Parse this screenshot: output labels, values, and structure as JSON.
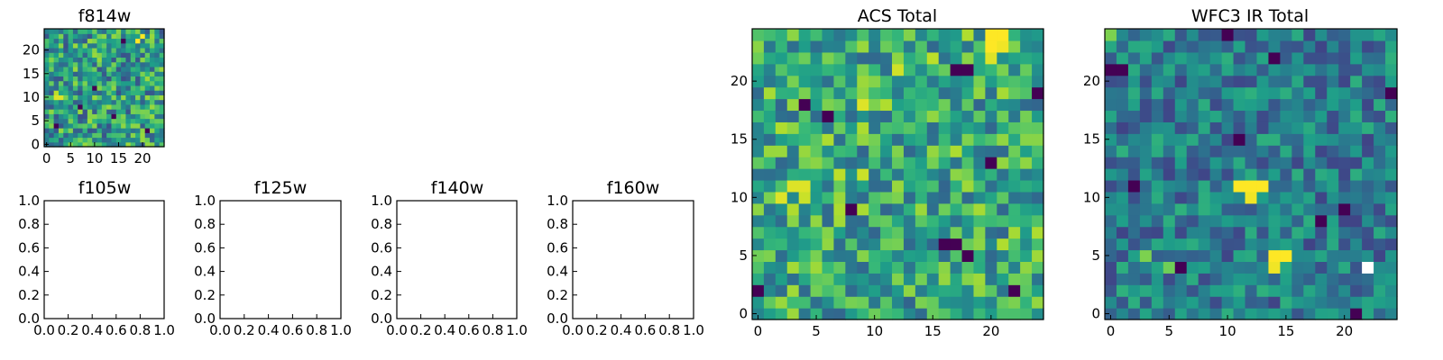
{
  "chart_data": [
    {
      "type": "heatmap",
      "title": "f814w",
      "colormap": "viridis",
      "grid_size": 25,
      "xticks": [
        "0",
        "5",
        "10",
        "15",
        "20"
      ],
      "yticks": [
        "0",
        "5",
        "10",
        "15",
        "20"
      ],
      "seed": 11,
      "base_level": 0.55,
      "noise": 0.3,
      "hotspots": [
        [
          19,
          22,
          1.0
        ],
        [
          20,
          23,
          1.0
        ],
        [
          2,
          10,
          0.95
        ],
        [
          3,
          10,
          0.95
        ],
        [
          2,
          11,
          0.9
        ]
      ],
      "coldspots": [
        [
          16,
          22
        ],
        [
          10,
          12
        ],
        [
          7,
          8
        ],
        [
          14,
          6
        ],
        [
          2,
          4
        ],
        [
          21,
          3
        ]
      ]
    },
    {
      "type": "empty",
      "title": "f105w",
      "xticks": [
        "0.0",
        "0.2",
        "0.4",
        "0.6",
        "0.8",
        "1.0"
      ],
      "yticks": [
        "0.0",
        "0.2",
        "0.4",
        "0.6",
        "0.8",
        "1.0"
      ]
    },
    {
      "type": "empty",
      "title": "f125w",
      "xticks": [
        "0.0",
        "0.2",
        "0.4",
        "0.6",
        "0.8",
        "1.0"
      ],
      "yticks": [
        "0.0",
        "0.2",
        "0.4",
        "0.6",
        "0.8",
        "1.0"
      ]
    },
    {
      "type": "empty",
      "title": "f140w",
      "xticks": [
        "0.0",
        "0.2",
        "0.4",
        "0.6",
        "0.8",
        "1.0"
      ],
      "yticks": [
        "0.0",
        "0.2",
        "0.4",
        "0.6",
        "0.8",
        "1.0"
      ]
    },
    {
      "type": "empty",
      "title": "f160w",
      "xticks": [
        "0.0",
        "0.2",
        "0.4",
        "0.6",
        "0.8",
        "1.0"
      ],
      "yticks": [
        "0.0",
        "0.2",
        "0.4",
        "0.6",
        "0.8",
        "1.0"
      ]
    },
    {
      "type": "heatmap",
      "title": "ACS Total",
      "colormap": "viridis",
      "grid_size": 25,
      "xticks": [
        "0",
        "5",
        "10",
        "15",
        "20"
      ],
      "yticks": [
        "0",
        "5",
        "10",
        "15",
        "20"
      ],
      "seed": 23,
      "base_level": 0.6,
      "noise": 0.28,
      "hotspots": [
        [
          20,
          23,
          1.0
        ],
        [
          20,
          24,
          1.0
        ],
        [
          21,
          24,
          1.0
        ],
        [
          21,
          23,
          0.98
        ],
        [
          20,
          22,
          0.95
        ],
        [
          2,
          10,
          0.95
        ],
        [
          3,
          11,
          0.95
        ],
        [
          4,
          11,
          0.95
        ],
        [
          4,
          10,
          0.92
        ],
        [
          9,
          18,
          0.95
        ],
        [
          12,
          21,
          0.93
        ],
        [
          7,
          12,
          0.9
        ],
        [
          9,
          12,
          0.92
        ],
        [
          15,
          22,
          0.9
        ]
      ],
      "coldspots": [
        [
          17,
          21
        ],
        [
          18,
          21
        ],
        [
          6,
          17
        ],
        [
          4,
          18
        ],
        [
          8,
          9
        ],
        [
          20,
          13
        ],
        [
          0,
          2
        ],
        [
          16,
          6
        ],
        [
          17,
          6
        ],
        [
          18,
          5
        ],
        [
          24,
          19
        ],
        [
          22,
          2
        ]
      ]
    },
    {
      "type": "heatmap",
      "title": "WFC3 IR Total",
      "colormap": "viridis",
      "grid_size": 25,
      "xticks": [
        "0",
        "5",
        "10",
        "15",
        "20"
      ],
      "yticks": [
        "0",
        "5",
        "10",
        "15",
        "20"
      ],
      "seed": 37,
      "base_level": 0.42,
      "noise": 0.22,
      "hotspots": [
        [
          11,
          11,
          1.0
        ],
        [
          12,
          11,
          1.0
        ],
        [
          13,
          11,
          1.0
        ],
        [
          12,
          10,
          0.98
        ],
        [
          14,
          5,
          1.0
        ],
        [
          15,
          5,
          1.0
        ],
        [
          14,
          4,
          0.98
        ],
        [
          3,
          5,
          0.8
        ],
        [
          0,
          24,
          0.8
        ],
        [
          5,
          4,
          0.78
        ]
      ],
      "saturated": [
        [
          22,
          4
        ]
      ],
      "coldspots": [
        [
          0,
          21
        ],
        [
          1,
          21
        ],
        [
          10,
          24
        ],
        [
          14,
          22
        ],
        [
          11,
          15
        ],
        [
          18,
          8
        ],
        [
          20,
          9
        ],
        [
          21,
          0
        ],
        [
          24,
          19
        ],
        [
          6,
          4
        ],
        [
          2,
          11
        ]
      ]
    }
  ]
}
